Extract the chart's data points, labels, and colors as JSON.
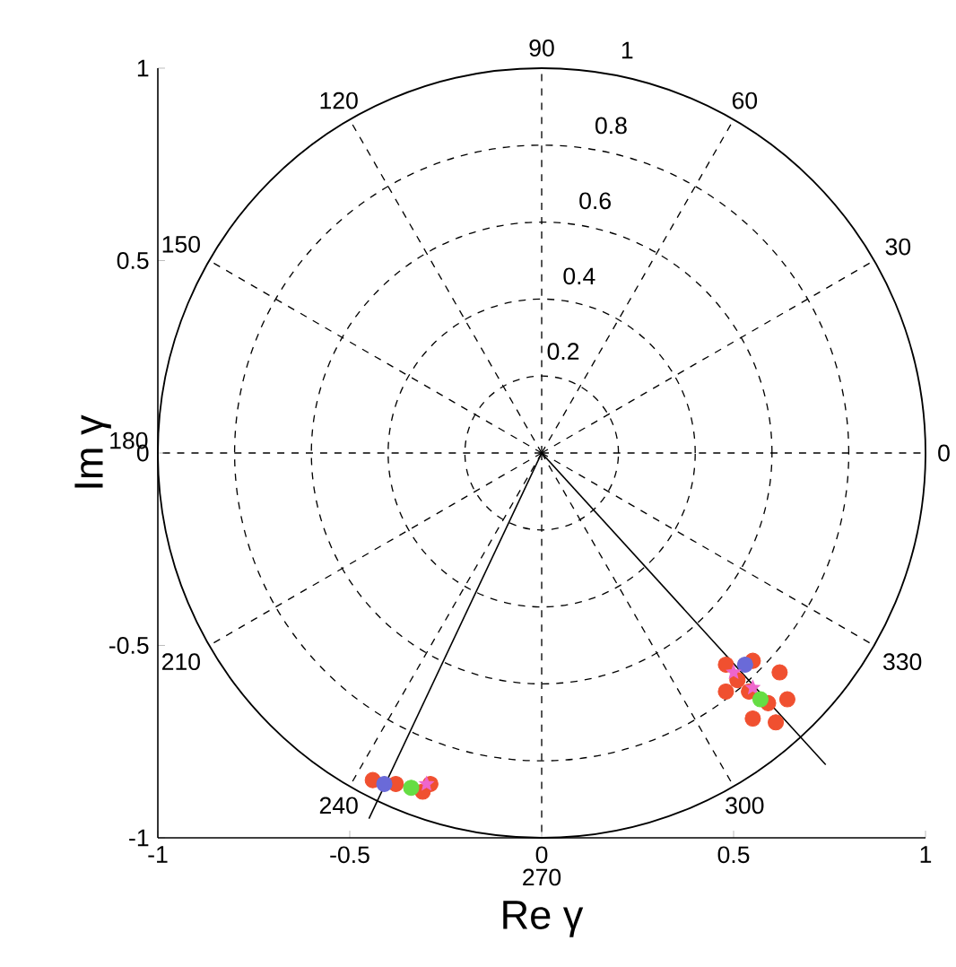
{
  "chart_data": [
    {
      "type": "scatter",
      "xlabel": "Re γ",
      "ylabel": "Im γ",
      "xlim": [
        -1,
        1
      ],
      "ylim": [
        -1,
        1
      ],
      "xticks": [
        -1,
        -0.5,
        0,
        0.5,
        1
      ],
      "yticks": [
        -1,
        -0.5,
        0,
        0.5,
        1
      ],
      "series": [
        {
          "type": "line",
          "color": "#000000",
          "marker": "none",
          "x": [
            0,
            -0.45
          ],
          "values": [
            0,
            -0.95
          ]
        },
        {
          "type": "line",
          "color": "#000000",
          "marker": "none",
          "x": [
            0,
            0.74
          ],
          "values": [
            0,
            -0.81
          ]
        },
        {
          "color": "#f05030",
          "marker": "circle",
          "x": [
            0.48,
            0.55,
            0.62,
            0.64,
            0.61,
            0.55,
            0.48,
            0.54,
            0.59,
            0.51,
            -0.44,
            -0.41,
            -0.36,
            -0.31,
            -0.29,
            -0.38
          ],
          "values": [
            -0.55,
            -0.54,
            -0.57,
            -0.64,
            -0.7,
            -0.69,
            -0.62,
            -0.62,
            -0.65,
            -0.59,
            -0.85,
            null,
            null,
            -0.88,
            -0.86,
            -0.86
          ]
        },
        {
          "color": "#6a6ad8",
          "marker": "circle",
          "x": [
            -0.41,
            0.53
          ],
          "values": [
            -0.86,
            -0.55
          ]
        },
        {
          "color": "#ee66cc",
          "marker": "star",
          "x": [
            -0.3,
            0.5,
            0.55
          ],
          "values": [
            -0.86,
            -0.57,
            -0.61
          ]
        },
        {
          "color": "#66dd44",
          "marker": "circle",
          "x": [
            -0.34,
            0.57
          ],
          "values": [
            -0.87,
            -0.64
          ]
        }
      ]
    },
    {
      "type": "radar",
      "categories": [
        "90",
        "60",
        "30",
        "0",
        "330",
        "300",
        "270",
        "240",
        "210",
        "180",
        "150",
        "120"
      ],
      "ylim": [
        0,
        1
      ],
      "yticks": [
        0.2,
        0.4,
        0.6,
        0.8,
        1
      ],
      "grid": true,
      "line_style": "dashed"
    }
  ]
}
